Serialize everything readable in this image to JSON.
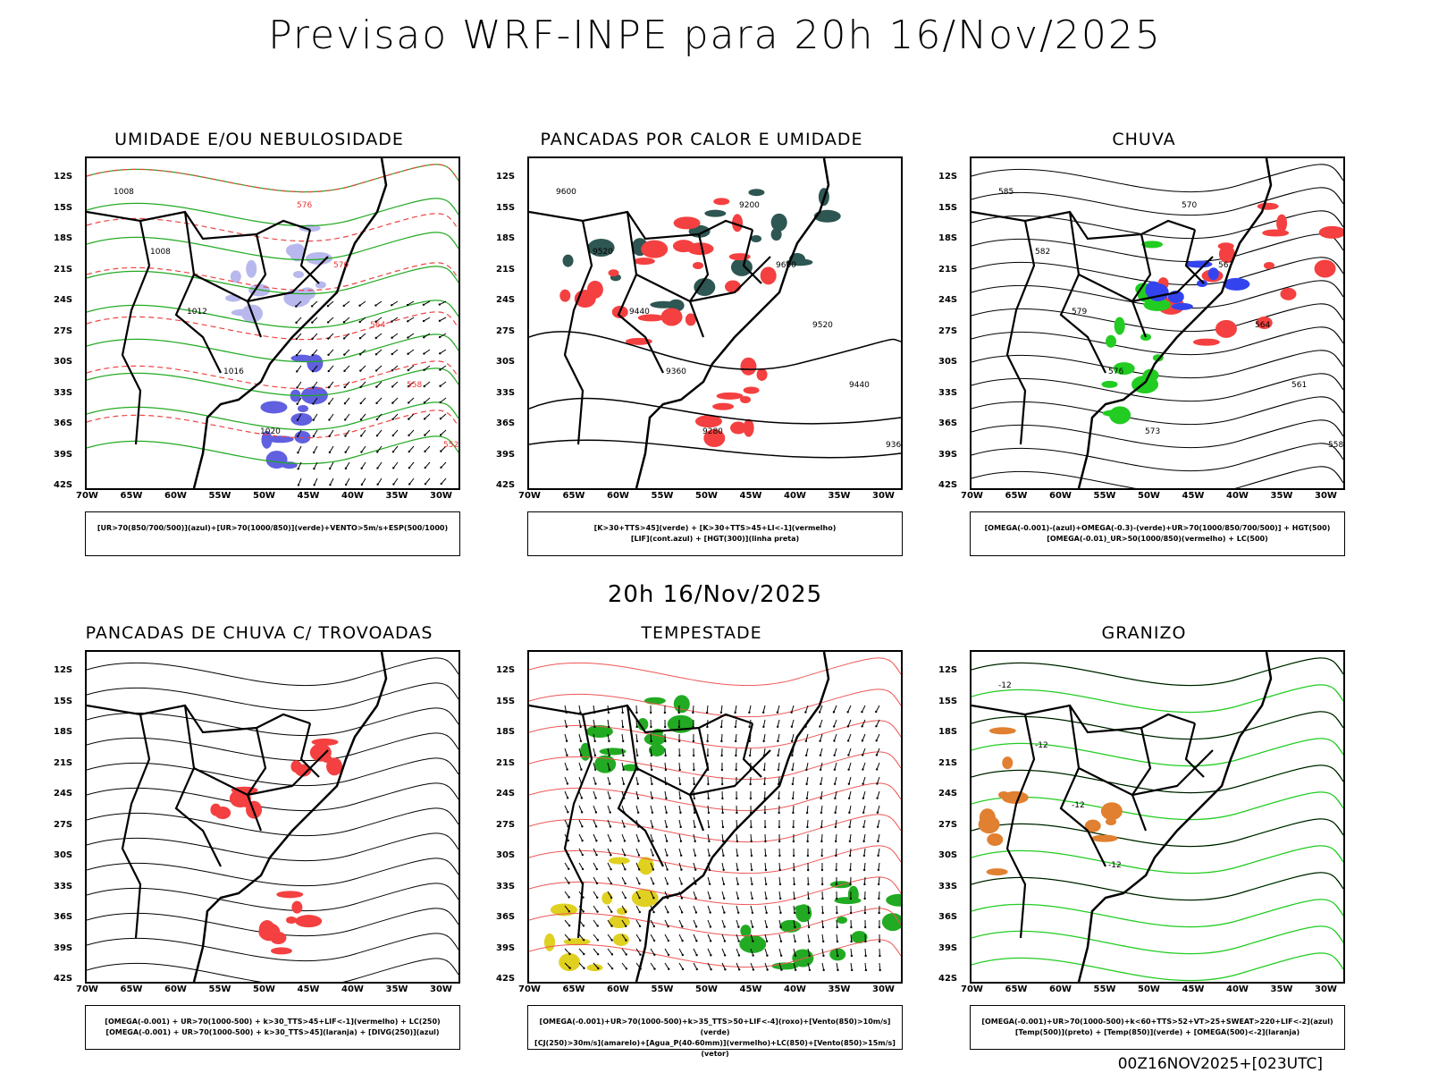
{
  "main_title": "Previsao WRF-INPE  para 20h 16/Nov/2025",
  "mid_title": "20h 16/Nov/2025",
  "footer": "00Z16NOV2025+[023UTC]",
  "lat_labels": [
    "12S",
    "15S",
    "18S",
    "21S",
    "24S",
    "27S",
    "30S",
    "33S",
    "36S",
    "39S",
    "42S"
  ],
  "lon_labels": [
    "70W",
    "65W",
    "60W",
    "55W",
    "50W",
    "45W",
    "40W",
    "35W",
    "30W"
  ],
  "panels": [
    {
      "title": "UMIDADE E/OU NEBULOSIDADE",
      "legend": [
        "[UR>70(850/700/500)](azul)+[UR>70(1000/850)](verde)+VENTO>5m/s+ESP(500/1000)"
      ],
      "labels": [
        "1008",
        "1008",
        "1012",
        "1016",
        "1020",
        "576",
        "570",
        "564",
        "558",
        "552"
      ]
    },
    {
      "title": "PANCADAS POR CALOR E UMIDADE",
      "legend": [
        "[K>30+TTS>45](verde) + [K>30+TTS>45+LI<-1](vermelho)",
        "[LIF](cont.azul) + [HGT(300)](linha preta)"
      ],
      "labels": [
        "9600",
        "9520",
        "9440",
        "9360",
        "9280",
        "9200",
        "9600",
        "9520",
        "9440",
        "9360"
      ]
    },
    {
      "title": "CHUVA",
      "legend": [
        "[OMEGA(-0.001)-(azul)+OMEGA(-0.3)-(verde)+UR>70(1000/850/700/500)] + HGT(500)",
        "[OMEGA(-0.01)_UR>50(1000/850)(vermelho) + LC(500)"
      ],
      "labels": [
        "585",
        "582",
        "579",
        "576",
        "573",
        "570",
        "567",
        "564",
        "561",
        "558"
      ]
    },
    {
      "title": "PANCADAS DE CHUVA C/ TROVOADAS",
      "legend": [
        "[OMEGA(-0.001) + UR>70(1000-500) + k>30_TTS>45+LIF<-1](vermelho) + LC(250)",
        "[OMEGA(-0.001) + UR>70(1000-500) + k>30_TTS>45](laranja) + [DIVG(250)](azul)"
      ],
      "labels": []
    },
    {
      "title": "TEMPESTADE",
      "legend": [
        "[OMEGA(-0.001)+UR>70(1000-500)+k>35_TTS>50+LIF<-4](roxo)+[Vento(850)>10m/s](verde)",
        "[CJ(250)>30m/s](amarelo)+[Agua_P(40-60mm)](vermelho)+LC(850)+[Vento(850)>15m/s](vetor)"
      ],
      "labels": []
    },
    {
      "title": "GRANIZO",
      "legend": [
        "[OMEGA(-0.001)+UR>70(1000-500)+k<60+TTS>52+VT>25+SWEAT>220+LIF<-2](azul)",
        "[Temp(500)](preto) + [Temp(850)](verde) + [OMEGA(500)<-2](laranja)"
      ],
      "labels": [
        "-12",
        "-12",
        "-12",
        "-12"
      ]
    }
  ]
}
